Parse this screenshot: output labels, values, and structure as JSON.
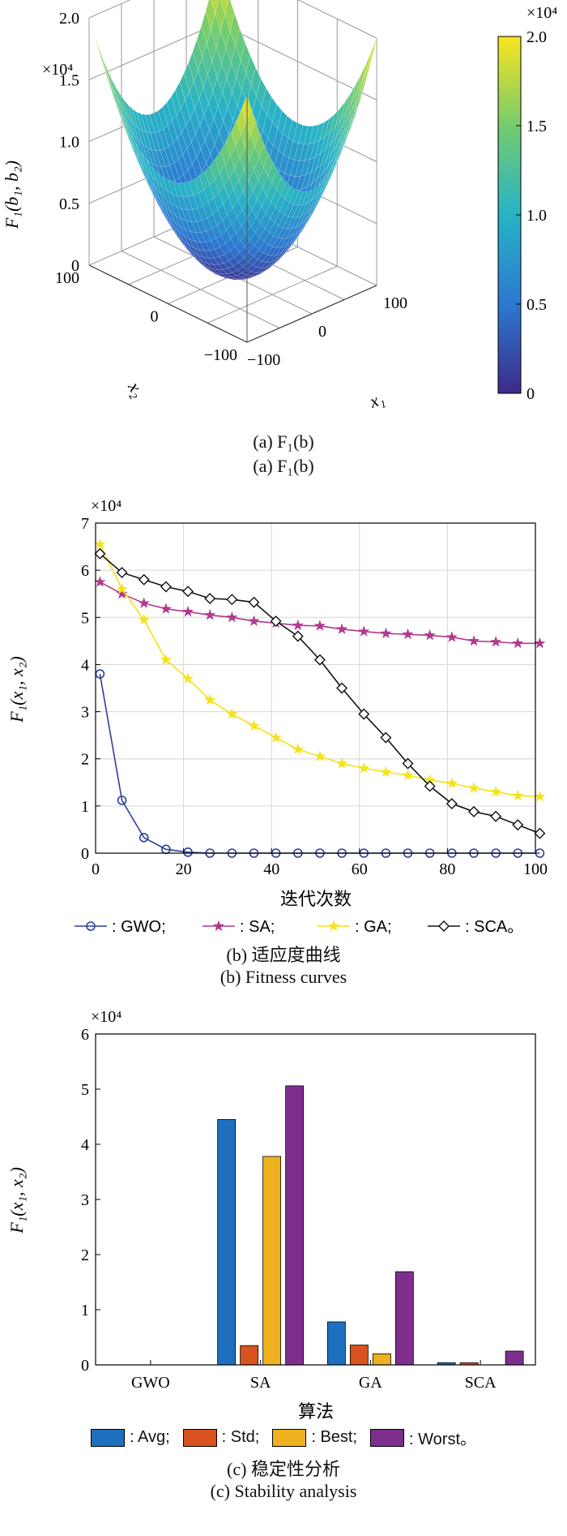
{
  "chart_data": [
    {
      "type": "surface",
      "x_ticks": [
        "100",
        "0",
        "−100"
      ],
      "x_ticks_b": [
        "−100",
        "0",
        "100"
      ],
      "xlabel": "x₁",
      "ylabel": "x₂",
      "zlabel": "F₁(b₁, b₂)",
      "z_ticks": [
        "2.0",
        "1.5",
        "1.0",
        "0.5",
        "0"
      ],
      "z_multiplier": "×10⁴",
      "colorbar_ticks": [
        "2.0",
        "1.5",
        "1.0",
        "0.5",
        "0"
      ],
      "colorbar_multiplier": "×10⁴",
      "zlim": [
        0,
        2.0
      ],
      "caption_1": "(a) F₁(b)",
      "caption_2": "(a) F₁(b)",
      "colormap": [
        "#3d2a8a",
        "#2c79d0",
        "#27b3c6",
        "#74cc6e",
        "#f9e61e"
      ]
    },
    {
      "type": "line",
      "xlabel": "迭代次数",
      "ylabel": "F₁(x₁, x₂)",
      "y_multiplier": "×10⁴",
      "xlim": [
        0,
        100
      ],
      "ylim": [
        0,
        7
      ],
      "x_ticks": [
        0,
        20,
        40,
        60,
        80,
        100
      ],
      "y_ticks": [
        0,
        1,
        2,
        3,
        4,
        5,
        6,
        7
      ],
      "grid": true,
      "series": [
        {
          "name": "GWO",
          "color": "#2e3f99",
          "marker": "circle",
          "x": [
            1,
            6,
            11,
            16,
            21,
            26,
            31,
            36,
            41,
            46,
            51,
            56,
            61,
            66,
            71,
            76,
            81,
            86,
            91,
            96,
            101
          ],
          "y": [
            3.8,
            1.12,
            0.33,
            0.08,
            0.02,
            0.0,
            0.0,
            0.0,
            0.0,
            0.0,
            0.0,
            0.0,
            0.0,
            0.0,
            0.0,
            0.0,
            0.0,
            0.0,
            0.0,
            0.0,
            0.0
          ]
        },
        {
          "name": "SA",
          "color": "#b03a8e",
          "marker": "star",
          "x": [
            1,
            6,
            11,
            16,
            21,
            26,
            31,
            36,
            41,
            46,
            51,
            56,
            61,
            66,
            71,
            76,
            81,
            86,
            91,
            96,
            101
          ],
          "y": [
            5.75,
            5.5,
            5.3,
            5.18,
            5.12,
            5.05,
            5.0,
            4.92,
            4.88,
            4.83,
            4.82,
            4.75,
            4.7,
            4.66,
            4.64,
            4.62,
            4.58,
            4.5,
            4.48,
            4.45,
            4.45
          ]
        },
        {
          "name": "GA",
          "color": "#f5e219",
          "marker": "star",
          "x": [
            1,
            6,
            11,
            16,
            21,
            26,
            31,
            36,
            41,
            46,
            51,
            56,
            61,
            66,
            71,
            76,
            81,
            86,
            91,
            96,
            101
          ],
          "y": [
            6.55,
            5.6,
            4.95,
            4.1,
            3.7,
            3.25,
            2.95,
            2.7,
            2.45,
            2.2,
            2.05,
            1.9,
            1.8,
            1.72,
            1.65,
            1.55,
            1.48,
            1.38,
            1.3,
            1.22,
            1.2
          ]
        },
        {
          "name": "SCA",
          "color": "#111111",
          "marker": "diamond",
          "x": [
            1,
            6,
            11,
            16,
            21,
            26,
            31,
            36,
            41,
            46,
            51,
            56,
            61,
            66,
            71,
            76,
            81,
            86,
            91,
            96,
            101
          ],
          "y": [
            6.35,
            5.95,
            5.8,
            5.65,
            5.55,
            5.4,
            5.38,
            5.32,
            4.92,
            4.6,
            4.1,
            3.5,
            2.95,
            2.45,
            1.9,
            1.42,
            1.05,
            0.88,
            0.78,
            0.6,
            0.42
          ]
        }
      ],
      "legend": [
        {
          "label": ": GWO;",
          "color": "#2e3f99",
          "marker": "circle"
        },
        {
          "label": ": SA;",
          "color": "#b03a8e",
          "marker": "star"
        },
        {
          "label": ": GA;",
          "color": "#f5e219",
          "marker": "star"
        },
        {
          "label": ": SCA。",
          "color": "#111111",
          "marker": "diamond"
        }
      ],
      "caption_1": "(b) 适应度曲线",
      "caption_2": "(b) Fitness curves"
    },
    {
      "type": "bar",
      "xlabel": "算法",
      "ylabel": "F₁(x₁, x₂)",
      "y_multiplier": "×10⁴",
      "categories": [
        "GWO",
        "SA",
        "GA",
        "SCA"
      ],
      "ylim": [
        0,
        6
      ],
      "y_ticks": [
        0,
        1,
        2,
        3,
        4,
        5,
        6
      ],
      "series": [
        {
          "name": "Avg",
          "color": "#1f6fbf",
          "values": [
            0.0,
            4.45,
            0.78,
            0.04
          ]
        },
        {
          "name": "Std",
          "color": "#d9531e",
          "values": [
            0.0,
            0.35,
            0.36,
            0.04
          ]
        },
        {
          "name": "Best",
          "color": "#edb120",
          "values": [
            0.0,
            3.78,
            0.2,
            0.0
          ]
        },
        {
          "name": "Worst",
          "color": "#7e2f8e",
          "values": [
            0.0,
            5.06,
            1.69,
            0.25
          ]
        }
      ],
      "legend": [
        {
          "label": ": Avg;",
          "color": "#1f6fbf"
        },
        {
          "label": ": Std;",
          "color": "#d9531e"
        },
        {
          "label": ": Best;",
          "color": "#edb120"
        },
        {
          "label": ": Worst。",
          "color": "#7e2f8e"
        }
      ],
      "caption_1": "(c) 稳定性分析",
      "caption_2": "(c) Stability analysis"
    }
  ]
}
